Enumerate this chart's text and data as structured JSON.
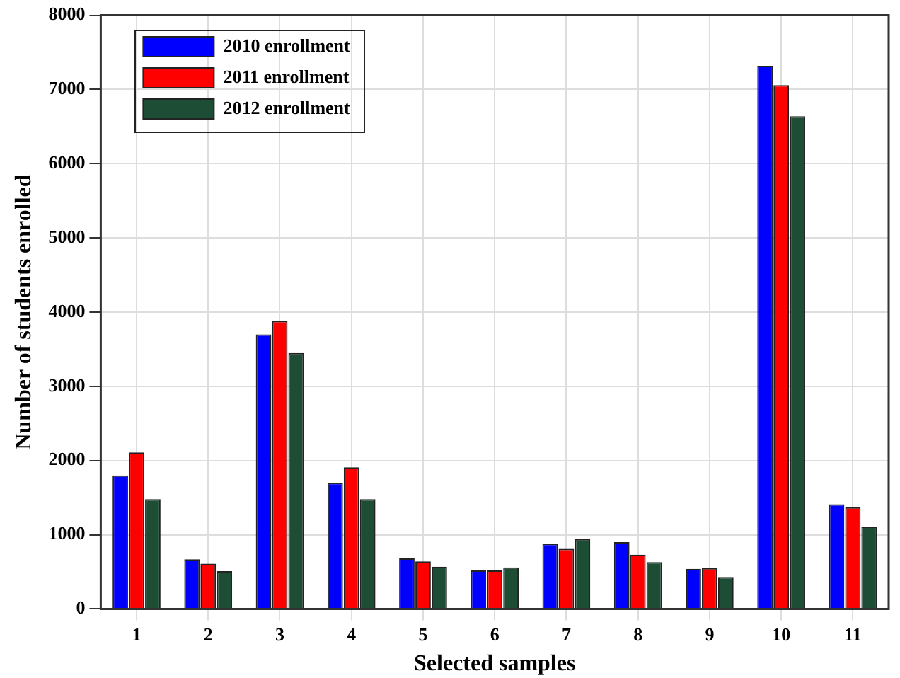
{
  "chart_data": {
    "type": "bar",
    "xlabel": "Selected samples",
    "ylabel": "Number of students enrolled",
    "categories": [
      "1",
      "2",
      "3",
      "4",
      "5",
      "6",
      "7",
      "8",
      "9",
      "10",
      "11"
    ],
    "series": [
      {
        "name": "2010 enrollment",
        "color": "#0000ff",
        "values": [
          1800,
          670,
          3700,
          1700,
          680,
          520,
          880,
          900,
          540,
          7320,
          1410
        ]
      },
      {
        "name": "2011 enrollment",
        "color": "#ff0000",
        "values": [
          2110,
          610,
          3880,
          1910,
          640,
          520,
          810,
          730,
          550,
          7060,
          1370
        ]
      },
      {
        "name": "2012 enrollment",
        "color": "#1e4d36",
        "values": [
          1480,
          510,
          3450,
          1480,
          570,
          560,
          940,
          630,
          430,
          6640,
          1110
        ]
      }
    ],
    "ylim": [
      0,
      8000
    ],
    "yticks": [
      0,
      1000,
      2000,
      3000,
      4000,
      5000,
      6000,
      7000,
      8000
    ],
    "grid": true,
    "legend": "top left"
  }
}
